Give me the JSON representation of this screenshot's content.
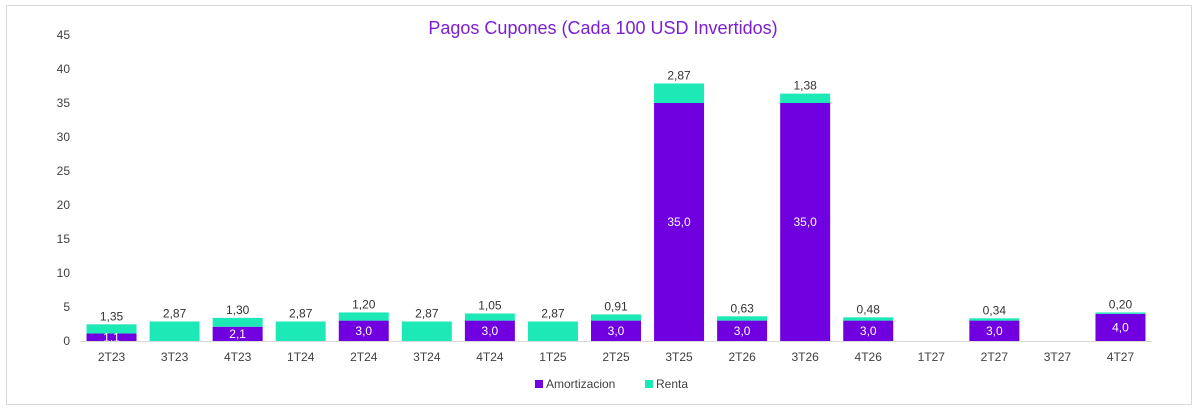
{
  "chart_data": {
    "type": "bar",
    "stacked": true,
    "title": "Pagos Cupones (Cada 100 USD Invertidos)",
    "xlabel": "",
    "ylabel": "",
    "ylim": [
      0,
      45
    ],
    "yticks": [
      "0",
      "5",
      "10",
      "15",
      "20",
      "25",
      "30",
      "35",
      "40",
      "45"
    ],
    "grid": false,
    "legend_position": "bottom",
    "categories": [
      "2T23",
      "3T23",
      "4T23",
      "1T24",
      "2T24",
      "3T24",
      "4T24",
      "1T25",
      "2T25",
      "3T25",
      "2T26",
      "3T26",
      "4T26",
      "1T27",
      "2T27",
      "3T27",
      "4T27"
    ],
    "series": [
      {
        "name": "Amortizacion",
        "color": "#7000e0",
        "values": [
          1.1,
          0,
          2.1,
          0,
          3.0,
          0,
          3.0,
          0,
          3.0,
          35.0,
          3.0,
          35.0,
          3.0,
          0,
          3.0,
          0,
          4.0
        ],
        "labels": [
          "1,1",
          "",
          "2,1",
          "",
          "3,0",
          "",
          "3,0",
          "",
          "3,0",
          "35,0",
          "3,0",
          "35,0",
          "3,0",
          "",
          "3,0",
          "",
          "4,0"
        ]
      },
      {
        "name": "Renta",
        "color": "#1de9b6",
        "values": [
          1.35,
          2.87,
          1.3,
          2.87,
          1.2,
          2.87,
          1.05,
          2.87,
          0.91,
          2.87,
          0.63,
          1.38,
          0.48,
          0,
          0.34,
          0,
          0.2
        ],
        "labels": [
          "1,35",
          "2,87",
          "1,30",
          "2,87",
          "1,20",
          "2,87",
          "1,05",
          "2,87",
          "0,91",
          "2,87",
          "0,63",
          "1,38",
          "0,48",
          "",
          "0,34",
          "",
          "0,20"
        ]
      }
    ]
  }
}
